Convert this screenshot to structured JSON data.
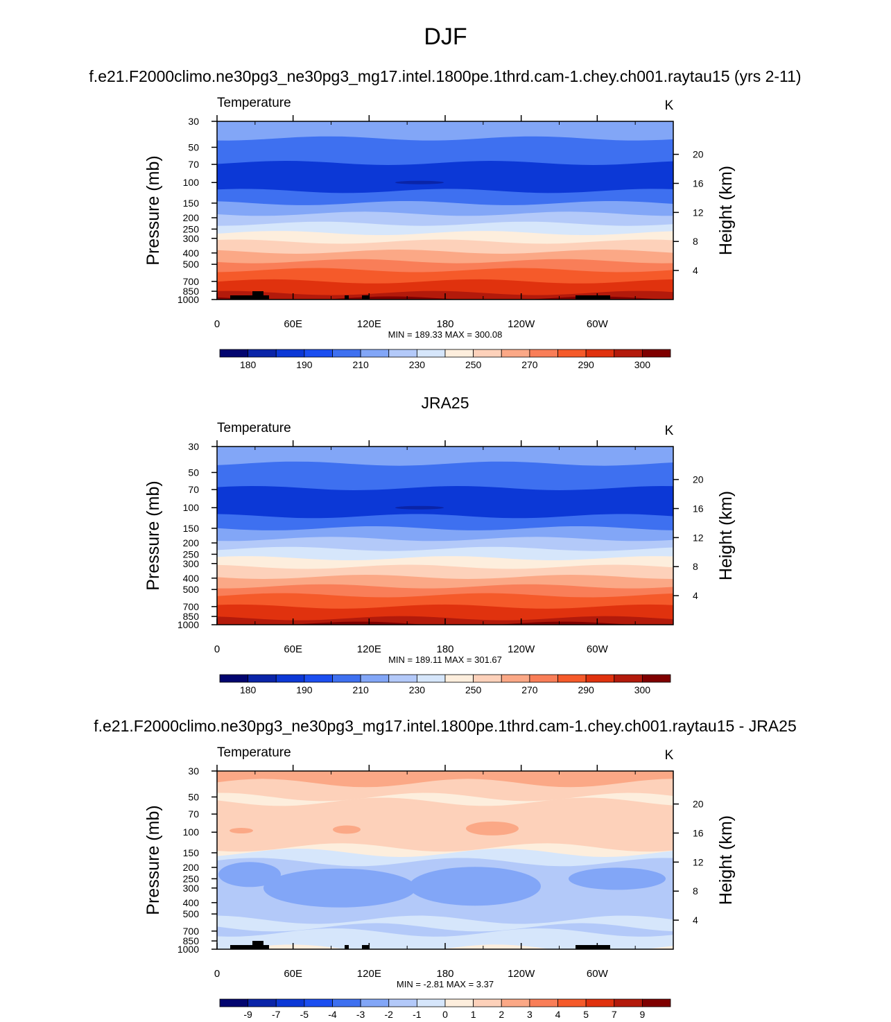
{
  "figure": {
    "title": "DJF"
  },
  "chart_data": [
    {
      "type": "heatmap",
      "title": "f.e21.F2000climo.ne30pg3_ne30pg3_mg17.intel.1800pe.1thrd.cam-1.chey.ch001.raytau15 (yrs 2-11)",
      "variable_label": "Temperature",
      "units": "K",
      "ylabel": "Pressure (mb)",
      "ylabel_right": "Height (km)",
      "x_ticks": [
        "0",
        "60E",
        "120E",
        "180",
        "120W",
        "60W"
      ],
      "y_ticks": [
        "30",
        "50",
        "70",
        "100",
        "150",
        "200",
        "250",
        "300",
        "400",
        "500",
        "700",
        "850",
        "1000"
      ],
      "y_ticks_right": [
        "20",
        "16",
        "12",
        "8",
        "4"
      ],
      "stats": "MIN = 189.33  MAX = 300.08",
      "min": 189.33,
      "max": 300.08,
      "colorbar_labels": [
        "180",
        "190",
        "210",
        "230",
        "250",
        "270",
        "290",
        "300"
      ],
      "colors": [
        "#02056f",
        "#0a24a8",
        "#0c38d6",
        "#1b4ef0",
        "#3e70f0",
        "#82a6f7",
        "#b3c9f9",
        "#d6e6fb",
        "#fdeedd",
        "#fdd1ba",
        "#fba886",
        "#f97e58",
        "#f55a2a",
        "#e0320e",
        "#b31a0b",
        "#7f0000"
      ],
      "profile": "temperature",
      "has_topography": true
    },
    {
      "type": "heatmap",
      "title": "JRA25",
      "variable_label": "Temperature",
      "units": "K",
      "ylabel": "Pressure (mb)",
      "ylabel_right": "Height (km)",
      "x_ticks": [
        "0",
        "60E",
        "120E",
        "180",
        "120W",
        "60W"
      ],
      "y_ticks": [
        "30",
        "50",
        "70",
        "100",
        "150",
        "200",
        "250",
        "300",
        "400",
        "500",
        "700",
        "850",
        "1000"
      ],
      "y_ticks_right": [
        "20",
        "16",
        "12",
        "8",
        "4"
      ],
      "stats": "MIN = 189.11  MAX = 301.67",
      "min": 189.11,
      "max": 301.67,
      "colorbar_labels": [
        "180",
        "190",
        "210",
        "230",
        "250",
        "270",
        "290",
        "300"
      ],
      "colors": [
        "#02056f",
        "#0a24a8",
        "#0c38d6",
        "#1b4ef0",
        "#3e70f0",
        "#82a6f7",
        "#b3c9f9",
        "#d6e6fb",
        "#fdeedd",
        "#fdd1ba",
        "#fba886",
        "#f97e58",
        "#f55a2a",
        "#e0320e",
        "#b31a0b",
        "#7f0000"
      ],
      "profile": "temperature",
      "has_topography": false
    },
    {
      "type": "heatmap",
      "title": "f.e21.F2000climo.ne30pg3_ne30pg3_mg17.intel.1800pe.1thrd.cam-1.chey.ch001.raytau15 - JRA25",
      "variable_label": "Temperature",
      "units": "K",
      "ylabel": "Pressure (mb)",
      "ylabel_right": "Height (km)",
      "x_ticks": [
        "0",
        "60E",
        "120E",
        "180",
        "120W",
        "60W"
      ],
      "y_ticks": [
        "30",
        "50",
        "70",
        "100",
        "150",
        "200",
        "250",
        "300",
        "400",
        "500",
        "700",
        "850",
        "1000"
      ],
      "y_ticks_right": [
        "20",
        "16",
        "12",
        "8",
        "4"
      ],
      "stats": "MIN =  -2.81  MAX =   3.37",
      "min": -2.81,
      "max": 3.37,
      "colorbar_labels": [
        "-9",
        "-7",
        "-5",
        "-4",
        "-3",
        "-2",
        "-1",
        "0",
        "1",
        "2",
        "3",
        "4",
        "5",
        "7",
        "9"
      ],
      "colors": [
        "#02056f",
        "#0a24a8",
        "#0c38d6",
        "#1b4ef0",
        "#3e70f0",
        "#82a6f7",
        "#b3c9f9",
        "#d6e6fb",
        "#fdeedd",
        "#fdd1ba",
        "#fba886",
        "#f97e58",
        "#f55a2a",
        "#e0320e",
        "#b31a0b",
        "#7f0000"
      ],
      "profile": "difference",
      "has_topography": true
    }
  ]
}
